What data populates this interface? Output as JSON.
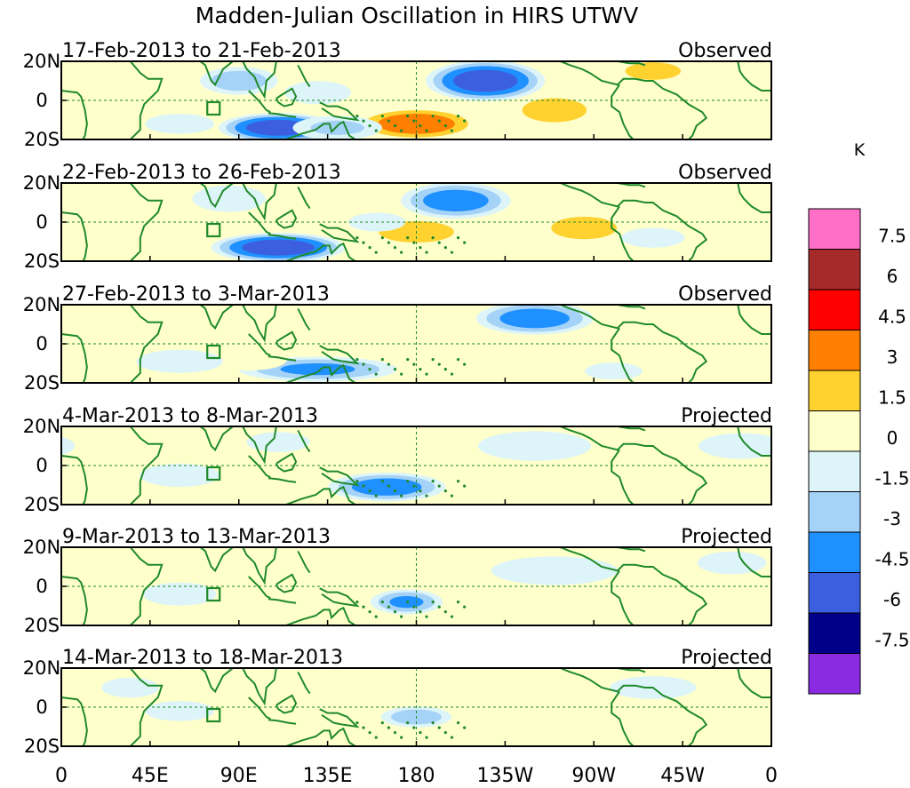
{
  "chart_data": {
    "type": "contour-map",
    "title": "Madden-Julian Oscillation in HIRS UTWV",
    "unit": "K",
    "lon_ticks": [
      "0",
      "45E",
      "90E",
      "135E",
      "180",
      "135W",
      "90W",
      "45W",
      "0"
    ],
    "lat_ticks": [
      "20N",
      "0",
      "20S"
    ],
    "colorbar": {
      "levels": [
        "7.5",
        "6",
        "4.5",
        "3",
        "1.5",
        "0",
        "-1.5",
        "-3",
        "-4.5",
        "-6",
        "-7.5"
      ],
      "colors": [
        "#ff6ec7",
        "#a52a2a",
        "#ff0000",
        "#ff7f00",
        "#ffd230",
        "#ffffcc",
        "#ddf5f8",
        "#a5d2f7",
        "#1e90ff",
        "#3c5fe0",
        "#00008b",
        "#8a2be2"
      ]
    },
    "panels": [
      {
        "period": "17-Feb-2013 to 21-Feb-2013",
        "status": "Observed",
        "anomalies": [
          {
            "lon": 215,
            "lat": 10,
            "w": 32,
            "h": 11,
            "v": -6.5
          },
          {
            "lon": 180,
            "lat": -12,
            "w": 34,
            "h": 9,
            "v": 5
          },
          {
            "lon": 250,
            "lat": -5,
            "w": 24,
            "h": 9,
            "v": 3.6
          },
          {
            "lon": 110,
            "lat": -14,
            "w": 32,
            "h": 8,
            "v": -6.5
          },
          {
            "lon": 90,
            "lat": 10,
            "w": 22,
            "h": 8,
            "v": -3.2
          },
          {
            "lon": 130,
            "lat": 4,
            "w": 20,
            "h": 7,
            "v": -2
          },
          {
            "lon": 300,
            "lat": 15,
            "w": 22,
            "h": 7,
            "v": 3.2
          },
          {
            "lon": 40,
            "lat": 12,
            "w": 22,
            "h": 8,
            "v": 2
          },
          {
            "lon": 140,
            "lat": -14,
            "w": 26,
            "h": 7,
            "v": -2.5
          },
          {
            "lon": 60,
            "lat": -12,
            "w": 24,
            "h": 7,
            "v": -1
          },
          {
            "lon": 340,
            "lat": 8,
            "w": 30,
            "h": 10,
            "v": 0.8
          },
          {
            "lon": 285,
            "lat": -6,
            "w": 18,
            "h": 7,
            "v": 2
          },
          {
            "lon": 155,
            "lat": 14,
            "w": 22,
            "h": 6,
            "v": 1.6
          }
        ]
      },
      {
        "period": "22-Feb-2013 to 26-Feb-2013",
        "status": "Observed",
        "anomalies": [
          {
            "lon": 200,
            "lat": 11,
            "w": 30,
            "h": 10,
            "v": -4.8
          },
          {
            "lon": 110,
            "lat": -13,
            "w": 36,
            "h": 8,
            "v": -6.5
          },
          {
            "lon": 180,
            "lat": -5,
            "w": 28,
            "h": 8,
            "v": 3.6
          },
          {
            "lon": 265,
            "lat": -3,
            "w": 26,
            "h": 9,
            "v": 3.2
          },
          {
            "lon": 85,
            "lat": 12,
            "w": 22,
            "h": 8,
            "v": -2
          },
          {
            "lon": 35,
            "lat": 12,
            "w": 24,
            "h": 8,
            "v": 2
          },
          {
            "lon": 330,
            "lat": 14,
            "w": 28,
            "h": 8,
            "v": 2
          },
          {
            "lon": 140,
            "lat": 12,
            "w": 24,
            "h": 7,
            "v": 1
          },
          {
            "lon": 50,
            "lat": -12,
            "w": 26,
            "h": 7,
            "v": 0.8
          },
          {
            "lon": 300,
            "lat": -8,
            "w": 22,
            "h": 7,
            "v": -1
          },
          {
            "lon": 160,
            "lat": 0,
            "w": 18,
            "h": 6,
            "v": -1.5
          }
        ]
      },
      {
        "period": "27-Feb-2013 to 3-Mar-2013",
        "status": "Observed",
        "anomalies": [
          {
            "lon": 240,
            "lat": 13,
            "w": 32,
            "h": 9,
            "v": -4.8
          },
          {
            "lon": 130,
            "lat": -13,
            "w": 44,
            "h": 7,
            "v": -4
          },
          {
            "lon": 170,
            "lat": 8,
            "w": 22,
            "h": 9,
            "v": 2
          },
          {
            "lon": 305,
            "lat": 5,
            "w": 30,
            "h": 9,
            "v": 2
          },
          {
            "lon": 350,
            "lat": -10,
            "w": 26,
            "h": 8,
            "v": 2
          },
          {
            "lon": 95,
            "lat": -8,
            "w": 24,
            "h": 7,
            "v": 1.6
          },
          {
            "lon": 60,
            "lat": -9,
            "w": 26,
            "h": 7,
            "v": -2
          },
          {
            "lon": 40,
            "lat": 10,
            "w": 22,
            "h": 8,
            "v": 1
          },
          {
            "lon": 205,
            "lat": -5,
            "w": 22,
            "h": 7,
            "v": 0.8
          },
          {
            "lon": 280,
            "lat": -14,
            "w": 20,
            "h": 6,
            "v": -1
          }
        ]
      },
      {
        "period": "4-Mar-2013 to 8-Mar-2013",
        "status": "Projected",
        "anomalies": [
          {
            "lon": 165,
            "lat": -11,
            "w": 32,
            "h": 8,
            "v": -4.8
          },
          {
            "lon": 240,
            "lat": 10,
            "w": 34,
            "h": 9,
            "v": -2
          },
          {
            "lon": 195,
            "lat": 10,
            "w": 16,
            "h": 7,
            "v": 2
          },
          {
            "lon": 280,
            "lat": 0,
            "w": 20,
            "h": 6,
            "v": 2
          },
          {
            "lon": 90,
            "lat": -14,
            "w": 26,
            "h": 7,
            "v": 2
          },
          {
            "lon": 60,
            "lat": -5,
            "w": 24,
            "h": 7,
            "v": -2
          },
          {
            "lon": 345,
            "lat": 10,
            "w": 30,
            "h": 9,
            "v": -1
          },
          {
            "lon": 40,
            "lat": 12,
            "w": 22,
            "h": 8,
            "v": 1
          },
          {
            "lon": 110,
            "lat": 12,
            "w": 22,
            "h": 7,
            "v": -1
          },
          {
            "lon": 320,
            "lat": -10,
            "w": 24,
            "h": 7,
            "v": 1
          }
        ]
      },
      {
        "period": "9-Mar-2013 to 13-Mar-2013",
        "status": "Projected",
        "anomalies": [
          {
            "lon": 175,
            "lat": -8,
            "w": 20,
            "h": 7,
            "v": -4
          },
          {
            "lon": 195,
            "lat": 12,
            "w": 22,
            "h": 8,
            "v": 2
          },
          {
            "lon": 90,
            "lat": -12,
            "w": 28,
            "h": 7,
            "v": 2
          },
          {
            "lon": 60,
            "lat": -4,
            "w": 22,
            "h": 7,
            "v": -2
          },
          {
            "lon": 250,
            "lat": 8,
            "w": 44,
            "h": 10,
            "v": -1
          },
          {
            "lon": 340,
            "lat": 12,
            "w": 24,
            "h": 8,
            "v": -1
          },
          {
            "lon": 130,
            "lat": 6,
            "w": 20,
            "h": 7,
            "v": 1
          },
          {
            "lon": 40,
            "lat": 12,
            "w": 20,
            "h": 7,
            "v": 1
          },
          {
            "lon": 300,
            "lat": -12,
            "w": 26,
            "h": 7,
            "v": 1
          }
        ]
      },
      {
        "period": "14-Mar-2013 to 18-Mar-2013",
        "status": "Projected",
        "anomalies": [
          {
            "lon": 180,
            "lat": -5,
            "w": 20,
            "h": 6,
            "v": -3.2
          },
          {
            "lon": 225,
            "lat": 12,
            "w": 14,
            "h": 6,
            "v": 2
          },
          {
            "lon": 120,
            "lat": -12,
            "w": 26,
            "h": 7,
            "v": 1
          },
          {
            "lon": 60,
            "lat": -2,
            "w": 24,
            "h": 7,
            "v": -1
          },
          {
            "lon": 300,
            "lat": 10,
            "w": 30,
            "h": 8,
            "v": -1
          },
          {
            "lon": 35,
            "lat": 10,
            "w": 20,
            "h": 7,
            "v": -1
          },
          {
            "lon": 150,
            "lat": 10,
            "w": 22,
            "h": 7,
            "v": 1
          },
          {
            "lon": 350,
            "lat": -10,
            "w": 22,
            "h": 7,
            "v": 1
          }
        ]
      }
    ]
  }
}
